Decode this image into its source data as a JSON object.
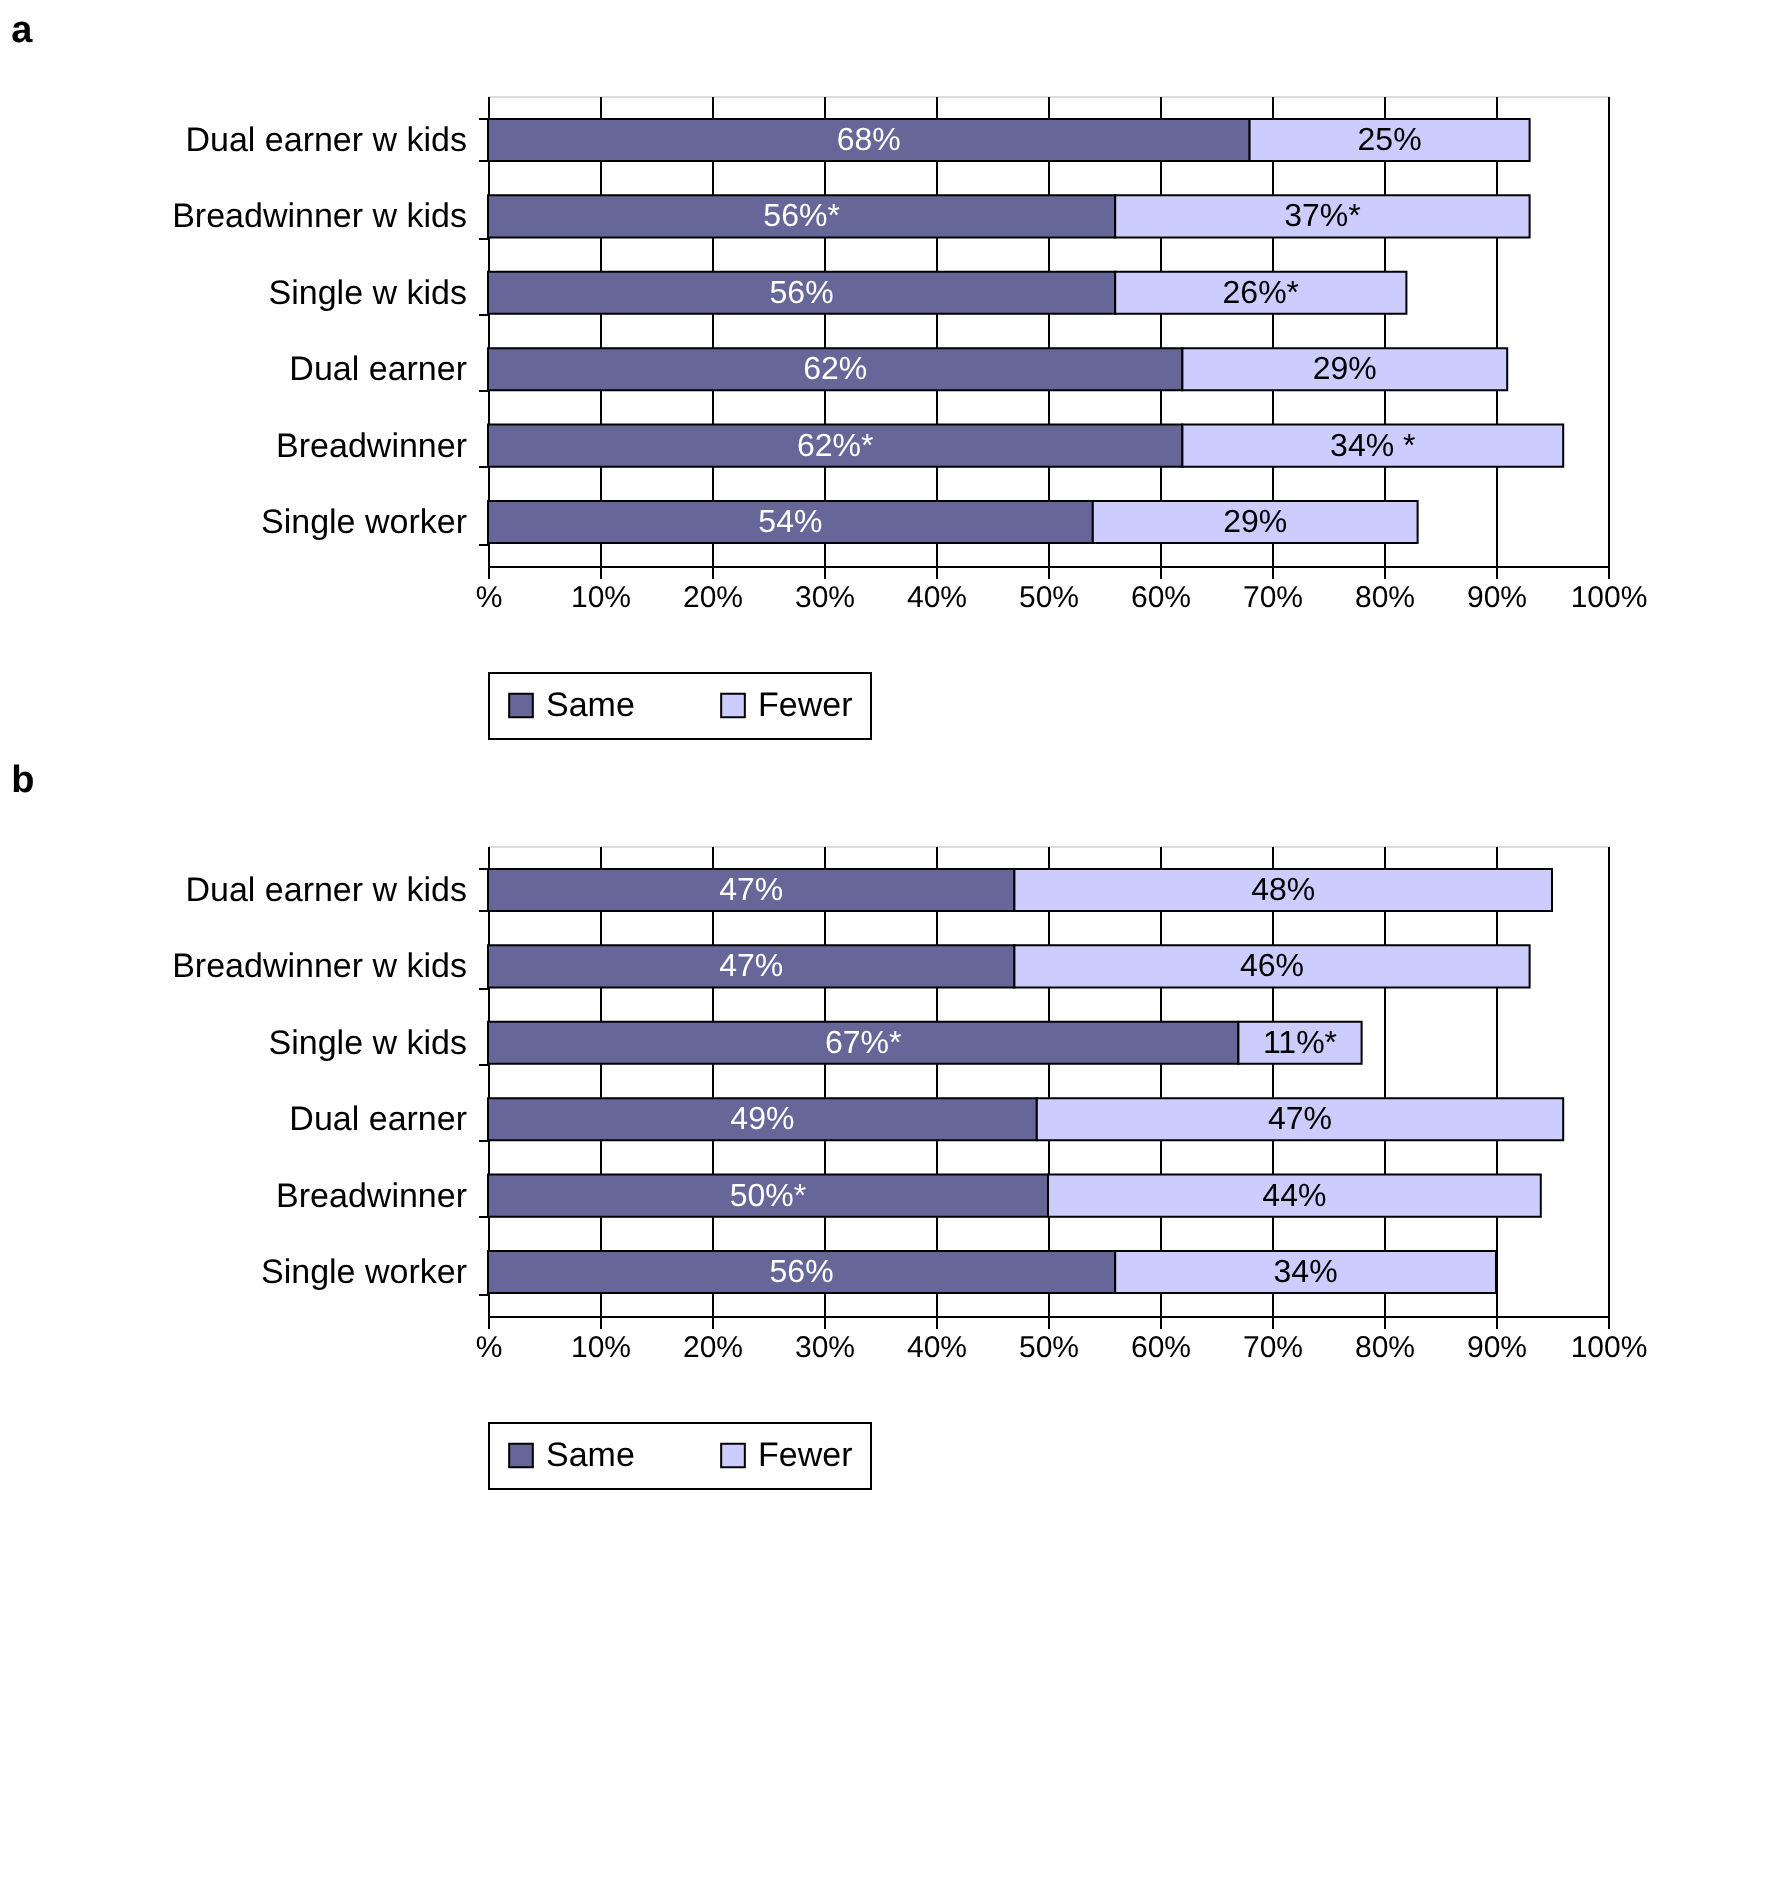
{
  "chart_data": [
    {
      "type": "bar",
      "title": "a",
      "orientation": "horizontal",
      "stacked": true,
      "categories": [
        "Dual earner w kids",
        "Breadwinner w kids",
        "Single w kids",
        "Dual earner",
        "Breadwinner",
        "Single worker"
      ],
      "series": [
        {
          "name": "Same",
          "color": "#666699",
          "values": [
            68,
            56,
            56,
            62,
            62,
            54
          ],
          "value_labels": [
            "68%",
            "56%*",
            "56%",
            "62%",
            "62%*",
            "54%"
          ]
        },
        {
          "name": "Fewer",
          "color": "#ccccff",
          "values": [
            25,
            37,
            26,
            29,
            34,
            29
          ],
          "value_labels": [
            "25%",
            "37%*",
            "26%*",
            "29%",
            "34% *",
            "29%"
          ]
        }
      ],
      "xlim": [
        0,
        100
      ],
      "xticks": [
        {
          "value": 0,
          "label": "%"
        },
        {
          "value": 10,
          "label": "10%"
        },
        {
          "value": 20,
          "label": "20%"
        },
        {
          "value": 30,
          "label": "30%"
        },
        {
          "value": 40,
          "label": "40%"
        },
        {
          "value": 50,
          "label": "50%"
        },
        {
          "value": 60,
          "label": "60%"
        },
        {
          "value": 70,
          "label": "70%"
        },
        {
          "value": 80,
          "label": "80%"
        },
        {
          "value": 90,
          "label": "90%"
        },
        {
          "value": 100,
          "label": "100%"
        }
      ],
      "grid": "x",
      "legend": "bottom"
    },
    {
      "type": "bar",
      "title": "b",
      "orientation": "horizontal",
      "stacked": true,
      "categories": [
        "Dual earner w kids",
        "Breadwinner w kids",
        "Single w kids",
        "Dual earner",
        "Breadwinner",
        "Single worker"
      ],
      "series": [
        {
          "name": "Same",
          "color": "#666699",
          "values": [
            47,
            47,
            67,
            49,
            50,
            56
          ],
          "value_labels": [
            "47%",
            "47%",
            "67%*",
            "49%",
            "50%*",
            "56%"
          ]
        },
        {
          "name": "Fewer",
          "color": "#ccccff",
          "values": [
            48,
            46,
            11,
            47,
            44,
            34
          ],
          "value_labels": [
            "48%",
            "46%",
            "11%*",
            "47%",
            "44%",
            "34%"
          ]
        }
      ],
      "xlim": [
        0,
        100
      ],
      "xticks": [
        {
          "value": 0,
          "label": "%"
        },
        {
          "value": 10,
          "label": "10%"
        },
        {
          "value": 20,
          "label": "20%"
        },
        {
          "value": 30,
          "label": "30%"
        },
        {
          "value": 40,
          "label": "40%"
        },
        {
          "value": 50,
          "label": "50%"
        },
        {
          "value": 60,
          "label": "60%"
        },
        {
          "value": 70,
          "label": "70%"
        },
        {
          "value": 80,
          "label": "80%"
        },
        {
          "value": 90,
          "label": "90%"
        },
        {
          "value": 100,
          "label": "100%"
        }
      ],
      "grid": "x",
      "legend": "bottom"
    }
  ]
}
